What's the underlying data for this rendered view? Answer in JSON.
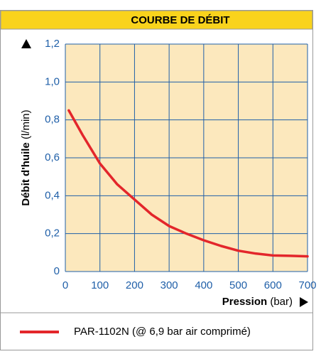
{
  "chart_data": {
    "type": "line",
    "title": "COURBE DE DÉBIT",
    "y_label": {
      "bold": "Débit d'huile",
      "unit": "(l/min)"
    },
    "x_label": {
      "bold": "Pression",
      "unit": "(bar)"
    },
    "x": [
      10,
      50,
      100,
      150,
      200,
      250,
      300,
      350,
      400,
      450,
      500,
      550,
      600,
      650,
      700
    ],
    "series": [
      {
        "name": "PAR-1102N (@ 6,9 bar air comprimé)",
        "color": "#e3262b",
        "values": [
          0.85,
          0.72,
          0.57,
          0.46,
          0.38,
          0.3,
          0.24,
          0.2,
          0.165,
          0.135,
          0.11,
          0.095,
          0.085,
          0.083,
          0.08
        ]
      }
    ],
    "xlim": [
      0,
      700
    ],
    "xticks": [
      0,
      100,
      200,
      300,
      400,
      500,
      600,
      700
    ],
    "ylim": [
      0,
      1.2
    ],
    "yticks": [
      0,
      {
        "value": 0.2,
        "label": "0,2"
      },
      {
        "value": 0.4,
        "label": "0,4"
      },
      {
        "value": 0.6,
        "label": "0,6"
      },
      {
        "value": 0.8,
        "label": "0,8"
      },
      {
        "value": 1.0,
        "label": "1,0"
      },
      {
        "value": 1.2,
        "label": "1,2"
      }
    ],
    "grid": true
  }
}
